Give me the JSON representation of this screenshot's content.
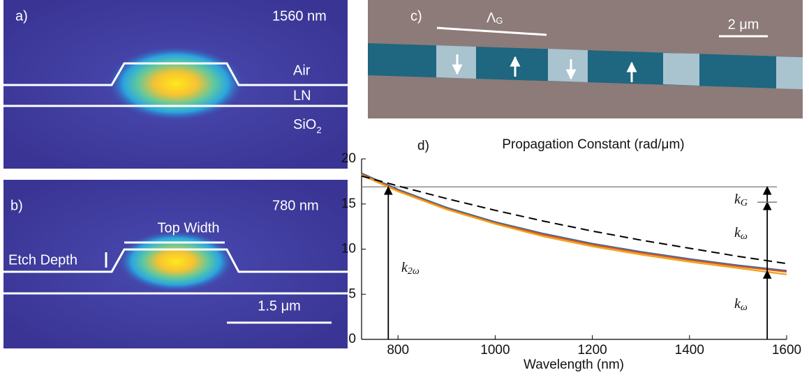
{
  "panel_a": {
    "label": "a)",
    "wavelength": "1560 nm",
    "layers": [
      {
        "text": "Air"
      },
      {
        "text": "LN"
      },
      {
        "text": "SiO",
        "subscript": "2"
      }
    ]
  },
  "panel_b": {
    "label": "b)",
    "wavelength": "780 nm",
    "top_width": "Top Width",
    "etch_depth": "Etch Depth",
    "scale_bar": "1.5 μm"
  },
  "panel_c": {
    "label": "c)",
    "period": {
      "text": "Λ",
      "subscript": "G"
    },
    "scale_bar": "2 μm"
  },
  "chart_data": {
    "type": "line",
    "panel_label": "d)",
    "title": "Propagation Constant (rad/μm)",
    "x_label": "Wavelength (nm)",
    "x": [
      725,
      800,
      900,
      1000,
      1100,
      1200,
      1300,
      1400,
      1500,
      1600
    ],
    "series": [
      {
        "color": "#1f6fb4",
        "dash": false,
        "values": [
          18.4,
          16.6,
          14.6,
          13.0,
          11.7,
          10.6,
          9.7,
          8.9,
          8.2,
          7.6
        ]
      },
      {
        "color": "#d9541a",
        "dash": false,
        "values": [
          18.3,
          16.5,
          14.5,
          12.9,
          11.6,
          10.5,
          9.6,
          8.8,
          8.1,
          7.5
        ]
      },
      {
        "color": "#eea51e",
        "dash": false,
        "values": [
          18.2,
          16.4,
          14.4,
          12.8,
          11.4,
          10.3,
          9.4,
          8.6,
          7.9,
          7.2
        ]
      },
      {
        "color": "#000000",
        "dash": true,
        "values": [
          18.1,
          17.0,
          15.6,
          14.3,
          13.1,
          12.0,
          11.0,
          10.1,
          9.2,
          8.4
        ]
      }
    ],
    "hline": 16.9,
    "arrows": [
      {
        "x": 780,
        "from": 0,
        "to": 16.9,
        "label": {
          "text": "k",
          "subscript": "2ω"
        }
      },
      {
        "x": 1560,
        "from": 0,
        "to": 7.6,
        "label": {
          "text": "k",
          "subscript": "ω"
        }
      },
      {
        "x": 1560,
        "from": 7.6,
        "to": 15.2,
        "label": {
          "text": "k",
          "subscript": "ω"
        }
      },
      {
        "x": 1560,
        "from": 15.2,
        "to": 16.9,
        "label": {
          "text": "k",
          "subscript": "G"
        }
      }
    ],
    "xlim": [
      725,
      1600
    ],
    "ylim": [
      0,
      20
    ],
    "xticks": [
      800,
      1000,
      1200,
      1400,
      1600
    ],
    "yticks": [
      0,
      5,
      10,
      15,
      20
    ]
  }
}
